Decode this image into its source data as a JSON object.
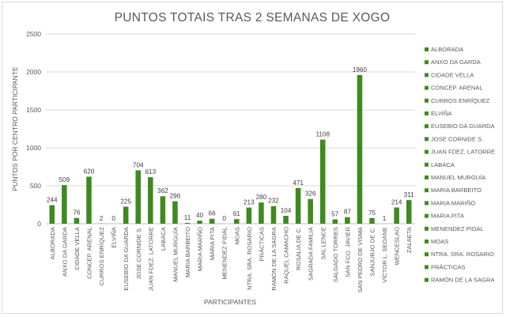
{
  "chart_data": {
    "type": "bar",
    "title": "PUNTOS TOTAIS TRAS 2 SEMANAS DE XOGO",
    "xlabel": "PARTICIPANTES",
    "ylabel": "PUNTOS POR CENTRO PARTICIPANTE",
    "ylim": [
      0,
      2500
    ],
    "yticks": [
      "0",
      "500",
      "1000",
      "1500",
      "2000",
      "2500"
    ],
    "grid": true,
    "legend_position": "right",
    "bar_color": "#3f8a1e",
    "categories": [
      "ALBORADA",
      "ANXO DA GARDA",
      "CIDADE VELLA",
      "CONCEP. ARENAL",
      "CURROS ENRÍQUEZ",
      "ELVIÑA",
      "EUSEBIO DA GUARDA",
      "JOSE CORNIDE S.",
      "JUAN FDEZ. LATORRE",
      "LABACA",
      "MANUEL MURGUÍA",
      "MARIA BARBEITO",
      "MARIA MARIÑO",
      "MARIA PITA",
      "MENENDEZ PIDAL",
      "MOAS",
      "NTRA. SRA. ROSARIO",
      "PRÁCTICAS",
      "RAMÓN DE LA SAGRA",
      "RAQUEL CAMACHO",
      "ROSALIA DE C.",
      "SAGRADA FAMILIA",
      "SAL LENCE",
      "SALGADO TORRES",
      "SAN FCO. JAVIER",
      "SAN PEDRO DE VISMA",
      "SANJURJO DE C.",
      "VÍCTOR L. SEOANE",
      "WENCESLAO",
      "ZALAETA"
    ],
    "values": [
      244,
      509,
      76,
      620,
      2,
      0,
      225,
      704,
      613,
      362,
      296,
      11,
      40,
      66,
      0,
      61,
      213,
      280,
      232,
      104,
      471,
      326,
      1108,
      57,
      87,
      1960,
      75,
      1,
      214,
      311
    ],
    "legend": [
      "ALBORADA",
      "ANXO DA GARDA",
      "CIDADE VELLA",
      "CONCEP. ARENAL",
      "CURROS ENRÍQUEZ",
      "ELVIÑA",
      "EUSEBIO DA GUARDA",
      "JOSE CORNIDE S.",
      "JUAN FDEZ. LATORRE",
      "LABACA",
      "MANUEL MURGUÍA",
      "MARIA BARBEITO",
      "MARIA MARIÑO",
      "MARIA PITA",
      "MENENDEZ PIDAL",
      "MOAS",
      "NTRA. SRA. ROSARIO",
      "PRÁCTICAS",
      "RAMÓN DE LA SAGRA"
    ]
  }
}
